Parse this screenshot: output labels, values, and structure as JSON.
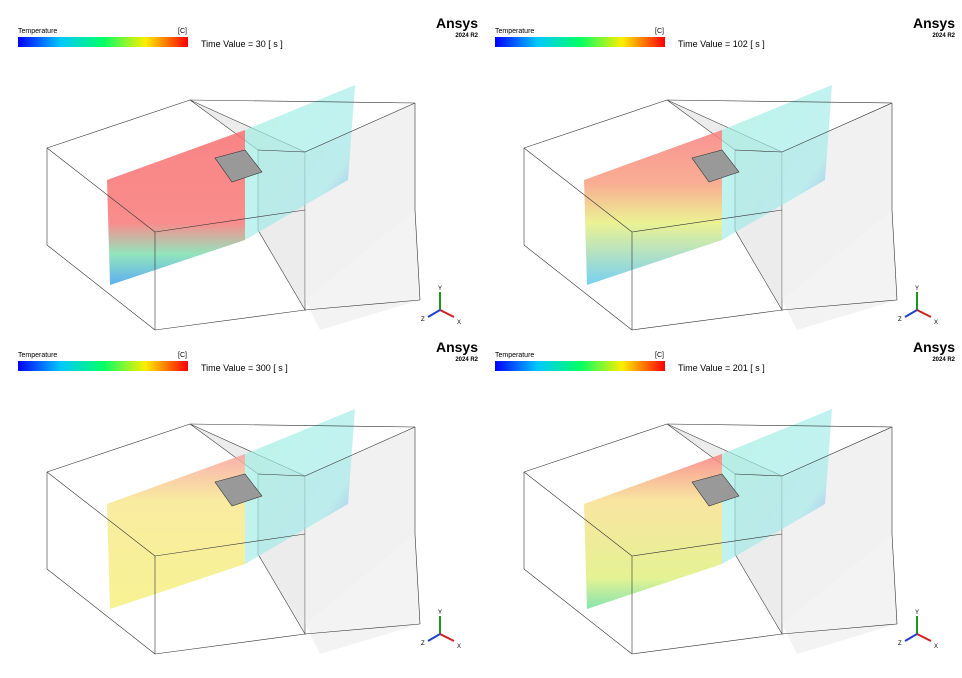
{
  "panels": [
    {
      "legend_title": "Temperature",
      "unit": "[C]",
      "time_label": "Time Value = 30 [ s ]",
      "logo": "Ansys",
      "version": "2024 R2",
      "axes": {
        "y": "Y",
        "z": "Z",
        "x": "X"
      }
    },
    {
      "legend_title": "Temperature",
      "unit": "[C]",
      "time_label": "Time Value = 102 [ s ]",
      "logo": "Ansys",
      "version": "2024 R2",
      "axes": {
        "y": "Y",
        "z": "Z",
        "x": "X"
      }
    },
    {
      "legend_title": "Temperature",
      "unit": "[C]",
      "time_label": "Time Value = 300 [ s ]",
      "logo": "Ansys",
      "version": "2024 R2",
      "axes": {
        "y": "Y",
        "z": "Z",
        "x": "X"
      }
    },
    {
      "legend_title": "Temperature",
      "unit": "[C]",
      "time_label": "Time Value = 201 [ s ]",
      "logo": "Ansys",
      "version": "2024 R2",
      "axes": {
        "y": "Y",
        "z": "Z",
        "x": "X"
      }
    }
  ]
}
